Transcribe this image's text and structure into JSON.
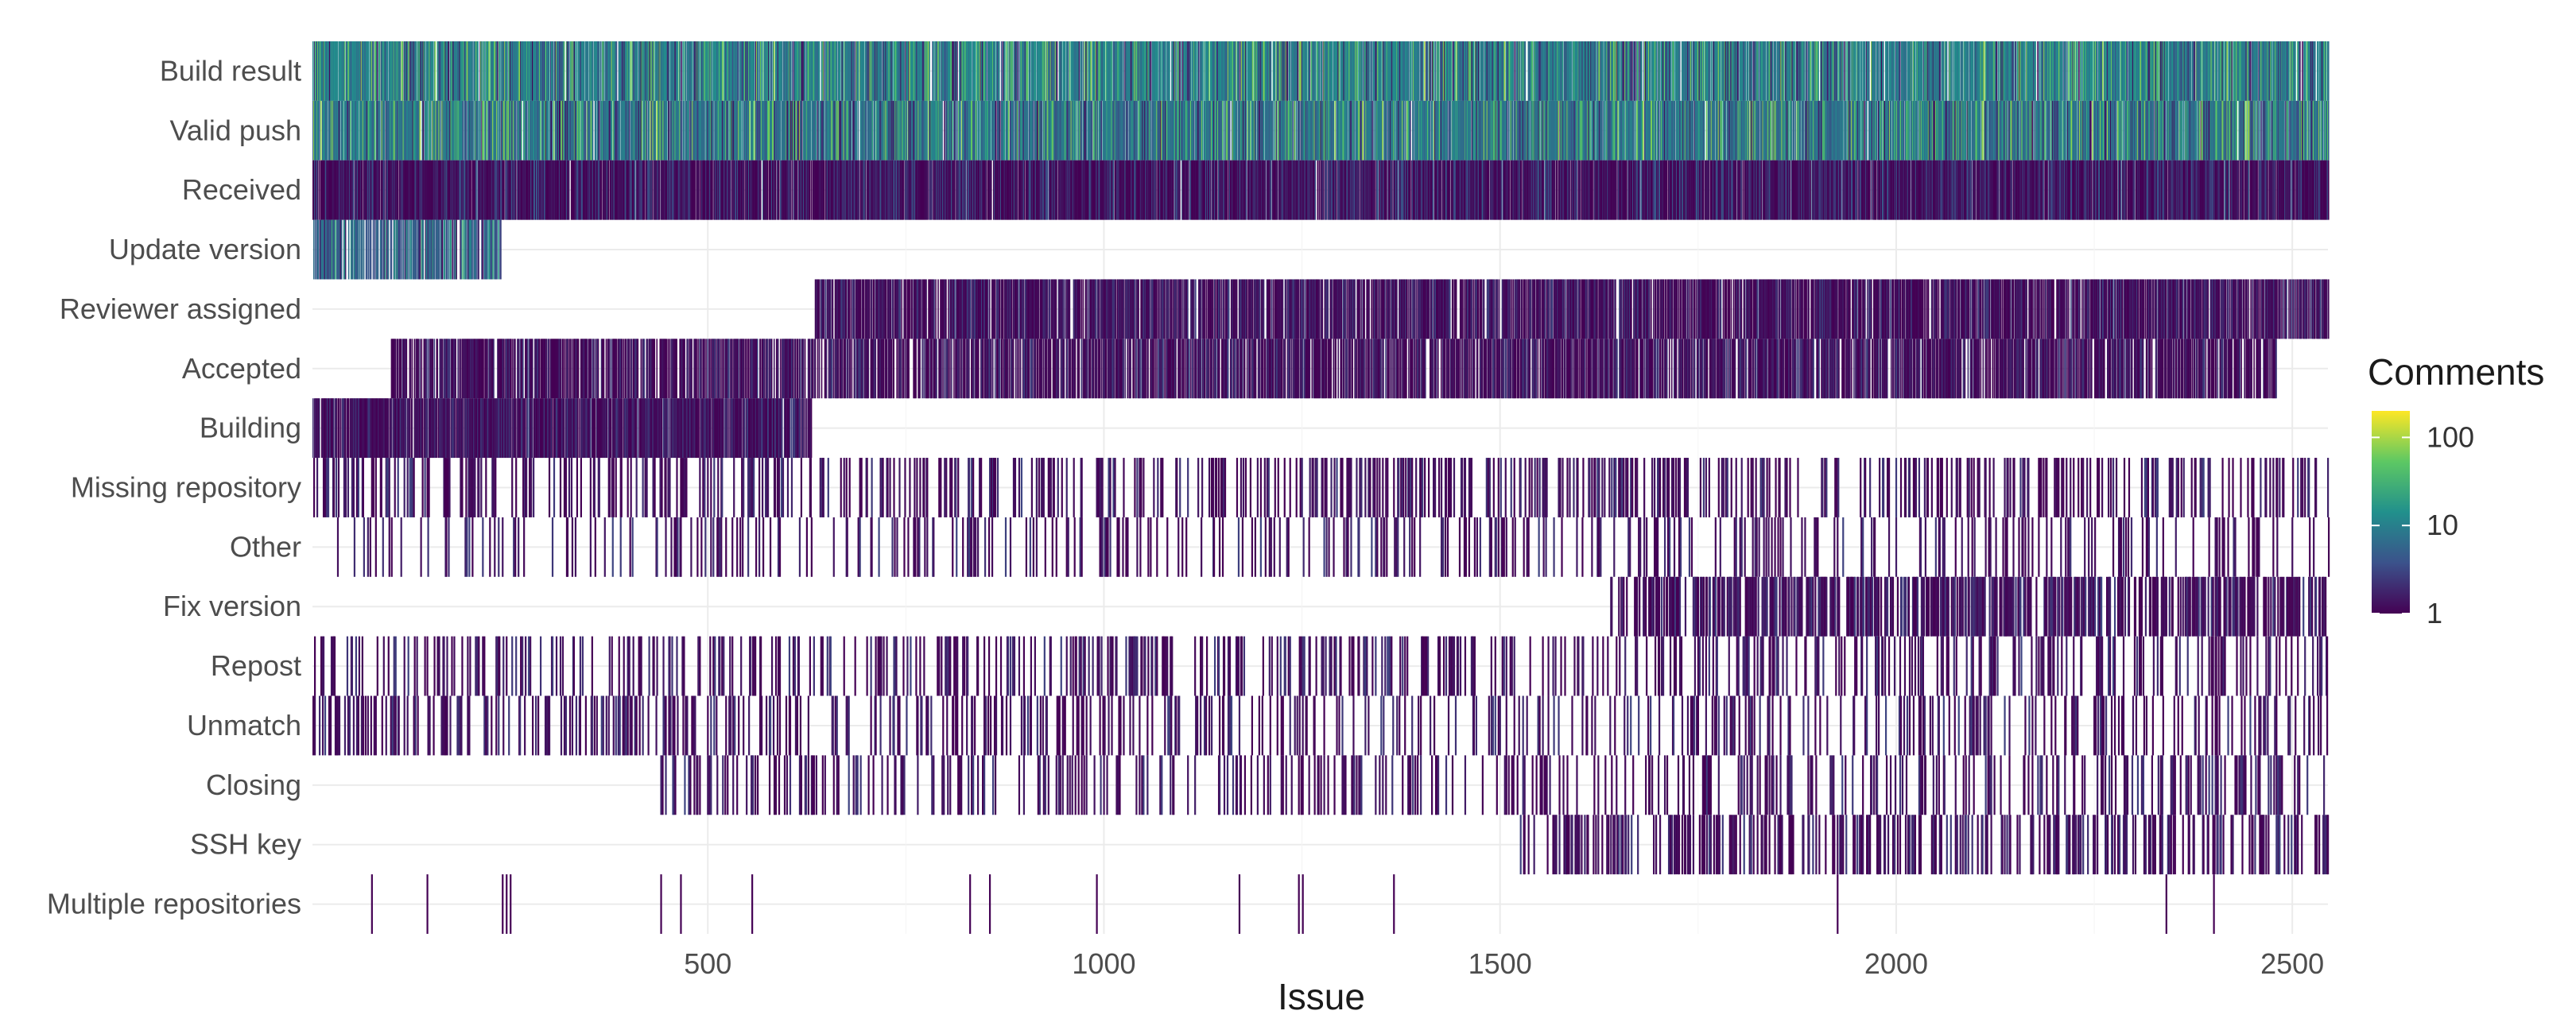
{
  "chart_data": {
    "type": "heatmap",
    "title": "",
    "xlabel": "Issue",
    "ylabel": "",
    "xlim": [
      1,
      2545
    ],
    "x_ticks": [
      500,
      1000,
      1500,
      2000,
      2500
    ],
    "grid": true,
    "categories": [
      "Build result",
      "Valid push",
      "Received",
      "Update version",
      "Reviewer assigned",
      "Accepted",
      "Building",
      "Missing repository",
      "Other",
      "Fix version",
      "Repost",
      "Unmatch",
      "Closing",
      "SSH key",
      "Multiple repositories"
    ],
    "series": [
      {
        "category": "Build result",
        "issue_ranges": [
          [
            1,
            2545
          ]
        ],
        "density": 0.9,
        "comments_range": [
          1,
          100
        ],
        "typical_comments": 10
      },
      {
        "category": "Valid push",
        "issue_ranges": [
          [
            1,
            2545
          ]
        ],
        "density": 0.9,
        "comments_range": [
          1,
          100
        ],
        "typical_comments": 8
      },
      {
        "category": "Received",
        "issue_ranges": [
          [
            1,
            2545
          ]
        ],
        "density": 0.95,
        "comments_range": [
          1,
          5
        ],
        "typical_comments": 1
      },
      {
        "category": "Update version",
        "issue_ranges": [
          [
            1,
            240
          ]
        ],
        "density": 0.7,
        "comments_range": [
          1,
          30
        ],
        "typical_comments": 5
      },
      {
        "category": "Reviewer assigned",
        "issue_ranges": [
          [
            635,
            2545
          ]
        ],
        "density": 0.8,
        "comments_range": [
          1,
          3
        ],
        "typical_comments": 1
      },
      {
        "category": "Accepted",
        "issue_ranges": [
          [
            100,
            2480
          ]
        ],
        "density": 0.75,
        "comments_range": [
          1,
          3
        ],
        "typical_comments": 1
      },
      {
        "category": "Building",
        "issue_ranges": [
          [
            1,
            630
          ]
        ],
        "density": 0.9,
        "comments_range": [
          1,
          3
        ],
        "typical_comments": 1
      },
      {
        "category": "Missing repository",
        "issue_ranges": [
          [
            1,
            2545
          ]
        ],
        "density": 0.22,
        "comments_range": [
          1,
          3
        ],
        "typical_comments": 1
      },
      {
        "category": "Other",
        "issue_ranges": [
          [
            30,
            2545
          ]
        ],
        "density": 0.15,
        "comments_range": [
          1,
          3
        ],
        "typical_comments": 1
      },
      {
        "category": "Fix version",
        "issue_ranges": [
          [
            1635,
            2545
          ]
        ],
        "density": 0.45,
        "comments_range": [
          1,
          3
        ],
        "typical_comments": 1
      },
      {
        "category": "Repost",
        "issue_ranges": [
          [
            1,
            2545
          ]
        ],
        "density": 0.2,
        "comments_range": [
          1,
          3
        ],
        "typical_comments": 1
      },
      {
        "category": "Unmatch",
        "issue_ranges": [
          [
            1,
            2545
          ]
        ],
        "density": 0.18,
        "comments_range": [
          1,
          3
        ],
        "typical_comments": 1
      },
      {
        "category": "Closing",
        "issue_ranges": [
          [
            440,
            2545
          ]
        ],
        "density": 0.18,
        "comments_range": [
          1,
          3
        ],
        "typical_comments": 1
      },
      {
        "category": "SSH key",
        "issue_ranges": [
          [
            1520,
            2545
          ]
        ],
        "density": 0.3,
        "comments_range": [
          1,
          3
        ],
        "typical_comments": 1
      },
      {
        "category": "Multiple repositories",
        "issue_values": [
          75,
          145,
          240,
          245,
          250,
          440,
          465,
          555,
          830,
          855,
          990,
          1170,
          1245,
          1250,
          1365,
          1925,
          2340,
          2400
        ],
        "comments_range": [
          1,
          1
        ],
        "typical_comments": 1
      }
    ],
    "legend": {
      "title": "Comments",
      "scale": "log",
      "breaks": [
        1,
        10,
        100
      ],
      "labels": [
        "1",
        "10",
        "100"
      ],
      "range": [
        1,
        200
      ],
      "placement": "right",
      "colors": [
        "#440154",
        "#3b528b",
        "#21908c",
        "#5dc863",
        "#fde725"
      ]
    }
  }
}
